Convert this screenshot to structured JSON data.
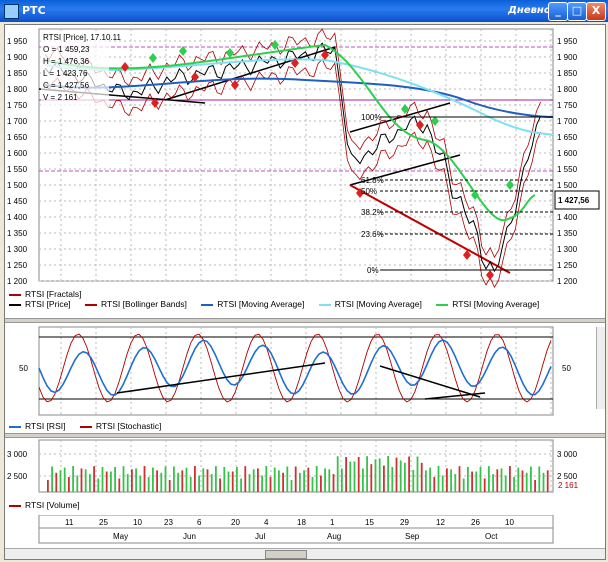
{
  "window": {
    "title": "РТС",
    "period": "Дневной",
    "buttons": [
      "_",
      "□",
      "X"
    ]
  },
  "price_panel": {
    "yticks": [
      "1 950",
      "1 900",
      "1 850",
      "1 800",
      "1 750",
      "1 700",
      "1 650",
      "1 600",
      "1 550",
      "1 500",
      "1 450",
      "1 400",
      "1 350",
      "1 300",
      "1 250",
      "1 200"
    ],
    "info": [
      "RTSI [Price], 17.10.11",
      "O = 1 459,23",
      "H = 1 476,36",
      "L = 1 423,76",
      "C = 1 427,56",
      "V = 2 161"
    ],
    "current_price": "1 427,56",
    "fib_levels": [
      "100%",
      "61.8%",
      "50%",
      "38.2%",
      "23.6%",
      "0%"
    ],
    "legend": [
      "RTSI [Fractals]",
      "RTSI [Price]",
      "RTSI [Bollinger Bands]",
      "RTSI [Moving Average]",
      "RTSI [Moving Average]",
      "RTSI [Moving Average]"
    ],
    "legend_colors": [
      "#b00000",
      "#000000",
      "#b00000",
      "#1f5fbf",
      "#7fe0f0",
      "#2ecf4f"
    ]
  },
  "osc_panel": {
    "level_label": "50",
    "legend": [
      "RTSI [RSI]",
      "RTSI [Stochastic]"
    ],
    "legend_colors": [
      "#1f6fd0",
      "#b00000"
    ]
  },
  "volume_panel": {
    "yticks": [
      "3 000",
      "2 500"
    ],
    "last_volume": "2 161",
    "legend": [
      "RTSI [Volume]"
    ],
    "legend_colors": [
      "#b00000"
    ]
  },
  "date_axis": {
    "days": [
      "11",
      "25",
      "10",
      "23",
      "6",
      "20",
      "4",
      "18",
      "1",
      "15",
      "29",
      "12",
      "26",
      "10"
    ],
    "months": [
      "May",
      "Jun",
      "Jul",
      "Aug",
      "Sep",
      "Oct"
    ]
  },
  "colors": {
    "price": "#000000",
    "bollinger": "#b00000",
    "ma_blue": "#1f5fbf",
    "ma_cyan": "#7fe0f0",
    "ma_green": "#2ecf4f",
    "fractal_up": "#2ecf4f",
    "fractal_down": "#e02020",
    "trend": "#000000",
    "trend_red": "#c00000",
    "vol_green": "#37c24a",
    "vol_red": "#d03030"
  }
}
